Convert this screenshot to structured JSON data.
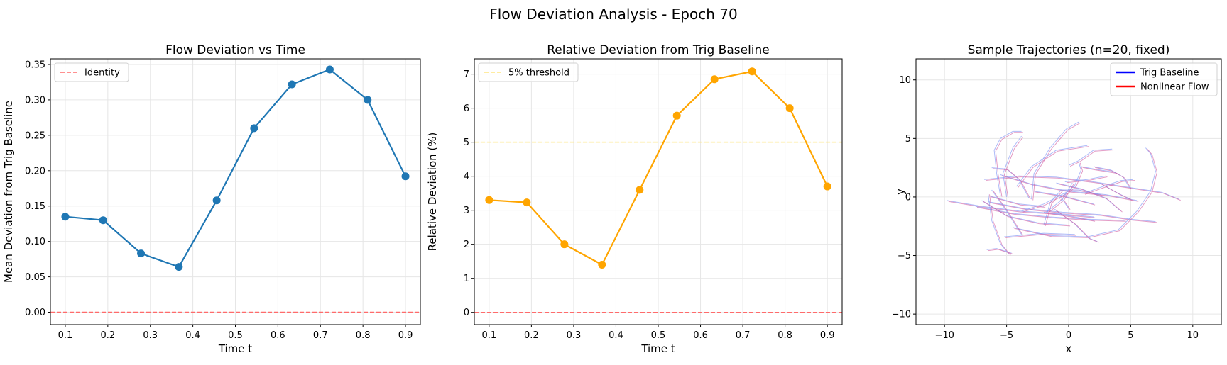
{
  "figure": {
    "suptitle": "Flow Deviation Analysis - Epoch 70"
  },
  "chart_data": [
    {
      "type": "line",
      "title": "Flow Deviation vs Time",
      "xlabel": "Time t",
      "ylabel": "Mean Deviation from Trig Baseline",
      "xlim": [
        0.065,
        0.935
      ],
      "ylim": [
        -0.0175,
        0.358
      ],
      "xticks": [
        0.1,
        0.2,
        0.3,
        0.4,
        0.5,
        0.6,
        0.7,
        0.8,
        0.9
      ],
      "xtick_labels": [
        "0.1",
        "0.2",
        "0.3",
        "0.4",
        "0.5",
        "0.6",
        "0.7",
        "0.8",
        "0.9"
      ],
      "yticks": [
        0.0,
        0.05,
        0.1,
        0.15,
        0.2,
        0.25,
        0.3,
        0.35
      ],
      "ytick_labels": [
        "0.00",
        "0.05",
        "0.10",
        "0.15",
        "0.20",
        "0.25",
        "0.30",
        "0.35"
      ],
      "grid": true,
      "legend_position": "top-left",
      "series": [
        {
          "color": "#1f77b4",
          "marker": "circle",
          "x": [
            0.1,
            0.189,
            0.278,
            0.367,
            0.456,
            0.544,
            0.633,
            0.722,
            0.811,
            0.9
          ],
          "y": [
            0.135,
            0.13,
            0.083,
            0.064,
            0.158,
            0.26,
            0.322,
            0.343,
            0.3,
            0.192
          ]
        }
      ],
      "hlines": [
        {
          "name": "Identity",
          "y": 0.0,
          "color": "#ff6b6b",
          "style": "dashed"
        }
      ]
    },
    {
      "type": "line",
      "title": "Relative Deviation from Trig Baseline",
      "xlabel": "Time t",
      "ylabel": "Relative Deviation (%)",
      "xlim": [
        0.065,
        0.935
      ],
      "ylim": [
        -0.36,
        7.45
      ],
      "xticks": [
        0.1,
        0.2,
        0.3,
        0.4,
        0.5,
        0.6,
        0.7,
        0.8,
        0.9
      ],
      "xtick_labels": [
        "0.1",
        "0.2",
        "0.3",
        "0.4",
        "0.5",
        "0.6",
        "0.7",
        "0.8",
        "0.9"
      ],
      "yticks": [
        0,
        1,
        2,
        3,
        4,
        5,
        6,
        7
      ],
      "ytick_labels": [
        "0",
        "1",
        "2",
        "3",
        "4",
        "5",
        "6",
        "7"
      ],
      "grid": true,
      "legend_position": "top-left",
      "series": [
        {
          "color": "#ffa500",
          "marker": "circle",
          "x": [
            0.1,
            0.189,
            0.278,
            0.367,
            0.456,
            0.544,
            0.633,
            0.722,
            0.811,
            0.9
          ],
          "y": [
            3.3,
            3.23,
            2.0,
            1.4,
            3.6,
            5.78,
            6.85,
            7.08,
            6.0,
            3.7
          ]
        }
      ],
      "hlines": [
        {
          "name": "5% threshold",
          "y": 5.0,
          "color": "#ffe680",
          "style": "dashed"
        },
        {
          "y": 0.0,
          "color": "#ff6b6b",
          "style": "dashed"
        }
      ]
    },
    {
      "type": "line",
      "title": "Sample Trajectories (n=20, fixed)",
      "xlabel": "x",
      "ylabel": "y",
      "xlim": [
        -12.3,
        12.3
      ],
      "ylim": [
        -10.9,
        11.8
      ],
      "xticks": [
        -10,
        -5,
        0,
        5,
        10
      ],
      "xtick_labels": [
        "−10",
        "−5",
        "0",
        "5",
        "10"
      ],
      "yticks": [
        -10,
        -5,
        0,
        5,
        10
      ],
      "ytick_labels": [
        "−10",
        "−5",
        "0",
        "5",
        "10"
      ],
      "grid": true,
      "legend_position": "top-right",
      "legend": [
        {
          "name": "Trig Baseline",
          "color": "#0000ff"
        },
        {
          "name": "Nonlinear Flow",
          "color": "#ff0000"
        }
      ],
      "trajectories": [
        {
          "points": [
            [
              -9.8,
              -0.3
            ],
            [
              -7.0,
              -0.8
            ],
            [
              -4.0,
              -1.2
            ],
            [
              -1.0,
              -1.4
            ],
            [
              2.0,
              -1.7
            ]
          ]
        },
        {
          "points": [
            [
              -7.5,
              -0.8
            ],
            [
              -4.5,
              -1.4
            ],
            [
              -1.5,
              -1.7
            ],
            [
              1.5,
              -1.9
            ],
            [
              4.5,
              -2.0
            ]
          ]
        },
        {
          "points": [
            [
              -6.5,
              -0.4
            ],
            [
              -3.5,
              -1.0
            ],
            [
              -0.5,
              -1.3
            ],
            [
              2.5,
              -1.5
            ],
            [
              5.0,
              -1.9
            ],
            [
              7.0,
              -2.1
            ]
          ]
        },
        {
          "points": [
            [
              -6.5,
              0.3
            ],
            [
              -6.2,
              -2.0
            ],
            [
              -5.5,
              -4.0
            ],
            [
              -4.8,
              -4.9
            ]
          ]
        },
        {
          "points": [
            [
              -6.6,
              -4.5
            ],
            [
              -5.8,
              -4.4
            ],
            [
              -4.6,
              -4.8
            ]
          ]
        },
        {
          "points": [
            [
              -6.8,
              1.5
            ],
            [
              -4.0,
              1.8
            ],
            [
              -1.0,
              1.7
            ],
            [
              2.0,
              1.3
            ],
            [
              5.0,
              0.8
            ],
            [
              7.5,
              0.4
            ],
            [
              8.9,
              -0.2
            ]
          ]
        },
        {
          "points": [
            [
              -5.5,
              1.9
            ],
            [
              -3.0,
              1.1
            ],
            [
              0.0,
              0.5
            ],
            [
              3.0,
              0.2
            ],
            [
              5.5,
              -0.3
            ]
          ]
        },
        {
          "points": [
            [
              -5.5,
              0.1
            ],
            [
              -5.8,
              2.0
            ],
            [
              -6.0,
              4.0
            ],
            [
              -5.5,
              5.0
            ],
            [
              -4.5,
              5.6
            ],
            [
              -3.8,
              5.6
            ]
          ]
        },
        {
          "points": [
            [
              -3.0,
              -0.2
            ],
            [
              -2.8,
              2.0
            ],
            [
              -1.5,
              4.2
            ],
            [
              -0.2,
              5.8
            ],
            [
              0.8,
              6.4
            ]
          ]
        },
        {
          "points": [
            [
              -5.0,
              0.0
            ],
            [
              -5.3,
              2.0
            ],
            [
              -4.5,
              4.2
            ],
            [
              -3.8,
              5.2
            ]
          ]
        },
        {
          "points": [
            [
              -4.2,
              0.9
            ],
            [
              -3.0,
              2.6
            ],
            [
              -1.0,
              4.0
            ],
            [
              1.5,
              4.4
            ]
          ]
        },
        {
          "points": [
            [
              -3.2,
              -0.1
            ],
            [
              -4.0,
              1.5
            ],
            [
              -5.0,
              2.4
            ],
            [
              -6.2,
              2.5
            ]
          ]
        },
        {
          "points": [
            [
              -6.4,
              0.1
            ],
            [
              -4.0,
              -0.6
            ],
            [
              -2.0,
              -0.8
            ]
          ]
        },
        {
          "points": [
            [
              -4.5,
              -2.6
            ],
            [
              -1.5,
              -3.3
            ],
            [
              1.5,
              -3.4
            ],
            [
              4.0,
              -2.8
            ],
            [
              5.5,
              -1.2
            ],
            [
              6.6,
              0.5
            ],
            [
              7.0,
              2.2
            ],
            [
              6.6,
              3.7
            ],
            [
              6.2,
              4.2
            ]
          ]
        },
        {
          "points": [
            [
              -1.2,
              -1.0
            ],
            [
              0.5,
              -2.3
            ],
            [
              1.6,
              -3.5
            ],
            [
              2.3,
              -3.8
            ]
          ]
        },
        {
          "points": [
            [
              -2.0,
              -2.4
            ],
            [
              -1.5,
              -0.5
            ],
            [
              -0.6,
              0.6
            ],
            [
              0.8,
              0.6
            ],
            [
              2.6,
              0.2
            ]
          ]
        },
        {
          "points": [
            [
              -0.8,
              -0.2
            ],
            [
              0.5,
              1.0
            ],
            [
              1.0,
              2.3
            ],
            [
              0.8,
              3.0
            ]
          ]
        },
        {
          "points": [
            [
              -1.0,
              1.2
            ],
            [
              1.0,
              0.7
            ],
            [
              3.0,
              -0.1
            ],
            [
              4.2,
              -1.2
            ]
          ]
        },
        {
          "points": [
            [
              -3.8,
              -1.2
            ],
            [
              -2.0,
              -0.6
            ],
            [
              -0.2,
              0.4
            ]
          ]
        },
        {
          "points": [
            [
              -1.8,
              -1.3
            ],
            [
              -0.5,
              -0.2
            ],
            [
              0.3,
              1.2
            ]
          ]
        },
        {
          "points": [
            [
              2.5,
              1.2
            ],
            [
              4.0,
              0.3
            ],
            [
              5.0,
              -0.2
            ]
          ]
        },
        {
          "points": [
            [
              -5.2,
              -3.4
            ],
            [
              -2.0,
              -3.1
            ],
            [
              0.5,
              -3.2
            ]
          ]
        },
        {
          "points": [
            [
              -6.2,
              0.6
            ],
            [
              -5.0,
              -1.2
            ],
            [
              -3.8,
              -3.2
            ]
          ]
        },
        {
          "points": [
            [
              -7.0,
              -0.3
            ],
            [
              -5.0,
              -1.6
            ],
            [
              -2.5,
              -2.2
            ],
            [
              0.0,
              -2.4
            ]
          ]
        },
        {
          "points": [
            [
              1.2,
              0.3
            ],
            [
              2.5,
              0.8
            ],
            [
              4.2,
              1.4
            ],
            [
              5.2,
              1.5
            ]
          ]
        },
        {
          "points": [
            [
              -2.8,
              0.5
            ],
            [
              -0.5,
              0.1
            ],
            [
              2.0,
              -0.6
            ]
          ]
        },
        {
          "points": [
            [
              -0.3,
              1.3
            ],
            [
              1.5,
              1.5
            ],
            [
              3.0,
              1.8
            ]
          ]
        },
        {
          "points": [
            [
              -0.5,
              -0.2
            ],
            [
              0.0,
              -1.0
            ]
          ]
        },
        {
          "points": [
            [
              0.0,
              2.7
            ],
            [
              0.8,
              3.1
            ],
            [
              2.0,
              4.0
            ],
            [
              3.5,
              4.1
            ]
          ]
        },
        {
          "points": [
            [
              2.0,
              2.6
            ],
            [
              3.4,
              2.3
            ],
            [
              4.4,
              1.7
            ],
            [
              4.9,
              0.8
            ]
          ]
        },
        {
          "points": [
            [
              1.0,
              2.6
            ],
            [
              2.0,
              2.4
            ],
            [
              3.8,
              2.1
            ]
          ]
        },
        {
          "points": [
            [
              -2.0,
              -1.3
            ],
            [
              0.0,
              -1.6
            ],
            [
              2.0,
              -2.0
            ]
          ]
        }
      ]
    }
  ]
}
